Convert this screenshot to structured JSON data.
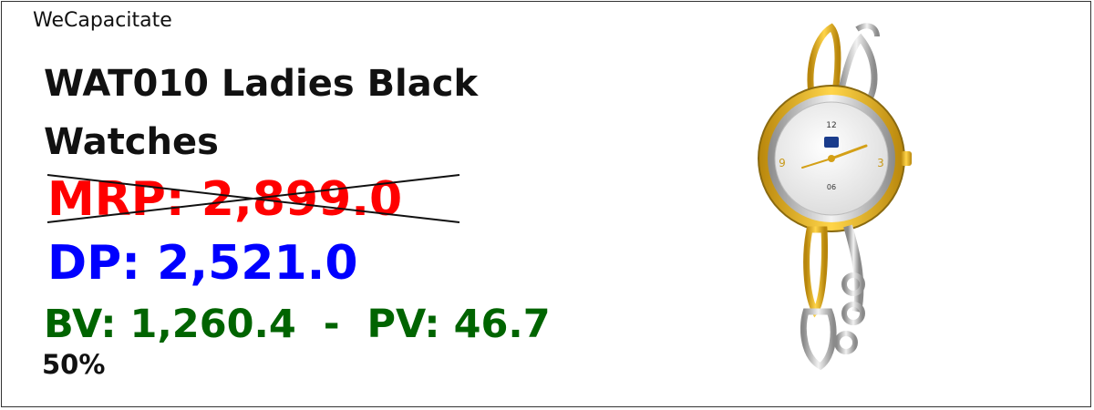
{
  "brand": "WeCapacitate",
  "product": {
    "title_line1": "WAT010 Ladies Black",
    "title_line2": "Watches",
    "mrp_text": "MRP: 2,899.0",
    "dp_text": "DP: 2,521.0",
    "bv_pv_text": "BV: 1,260.4  -  PV: 46.7",
    "percent_text": "50%",
    "watch_dial": {
      "number_top": "12",
      "number_left": "9",
      "number_right": "3",
      "date_window": "06"
    }
  },
  "colors": {
    "mrp": "#ff0000",
    "dp": "#0000ff",
    "bv_pv": "#006400",
    "text": "#111111",
    "gold": "#e6b422",
    "silver": "#c8c8c8"
  }
}
